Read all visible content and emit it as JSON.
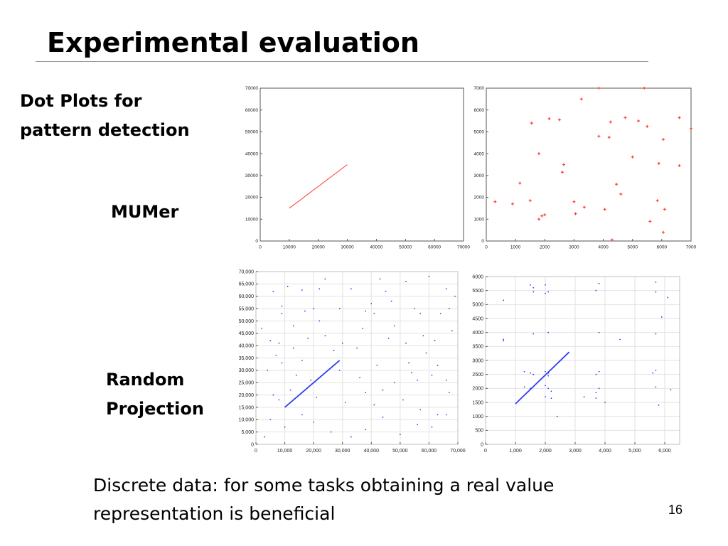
{
  "slide": {
    "title": "Experimental evaluation",
    "label_dotplots": [
      "Dot Plots for",
      "pattern detection"
    ],
    "label_mumer": "MUMer",
    "label_rp": [
      "Random",
      "Projection"
    ],
    "caption": [
      "Discrete data: for some tasks obtaining a real value",
      "representation is beneficial"
    ],
    "page_number": "16"
  },
  "chart_data": [
    {
      "id": "mumer-left",
      "type": "line",
      "color": "#ff3b30",
      "xlim": [
        0,
        70000
      ],
      "ylim": [
        0,
        70000
      ],
      "xticks": [
        0,
        10000,
        20000,
        30000,
        40000,
        50000,
        60000,
        70000
      ],
      "yticks": [
        0,
        10000,
        20000,
        30000,
        40000,
        50000,
        60000,
        70000
      ],
      "xticklabels": [
        "0",
        "10000",
        "20000",
        "30000",
        "40000",
        "50000",
        "60000",
        "70000"
      ],
      "yticklabels": [
        "0",
        "10000",
        "20000",
        "30000",
        "40000",
        "50000",
        "60000",
        "70000"
      ],
      "grid": false,
      "lines": [
        {
          "x": [
            10000,
            30000
          ],
          "y": [
            15000,
            35000
          ]
        }
      ],
      "points": []
    },
    {
      "id": "mumer-right",
      "type": "scatter",
      "color": "#ff3b30",
      "xlim": [
        0,
        7000
      ],
      "ylim": [
        0,
        7000
      ],
      "xticks": [
        0,
        1000,
        2000,
        3000,
        4000,
        5000,
        6000,
        7000
      ],
      "yticks": [
        0,
        1000,
        2000,
        3000,
        4000,
        5000,
        6000,
        7000
      ],
      "xticklabels": [
        "0",
        "1000",
        "2000",
        "3000",
        "4000",
        "5000",
        "6000",
        "7000"
      ],
      "yticklabels": [
        "0",
        "1000",
        "2000",
        "3000",
        "4000",
        "5000",
        "6000",
        "7000"
      ],
      "grid": false,
      "lines": [],
      "points": [
        [
          300,
          1800
        ],
        [
          900,
          1700
        ],
        [
          1150,
          2650
        ],
        [
          1500,
          1850
        ],
        [
          1550,
          5400
        ],
        [
          1800,
          1000
        ],
        [
          1800,
          4000
        ],
        [
          1900,
          1150
        ],
        [
          2000,
          1200
        ],
        [
          2150,
          5600
        ],
        [
          2500,
          5550
        ],
        [
          2600,
          3150
        ],
        [
          2650,
          3500
        ],
        [
          3000,
          1800
        ],
        [
          3050,
          1250
        ],
        [
          3250,
          6500
        ],
        [
          3350,
          1550
        ],
        [
          3850,
          7000
        ],
        [
          3850,
          4800
        ],
        [
          4050,
          1450
        ],
        [
          4200,
          4750
        ],
        [
          4250,
          5450
        ],
        [
          4300,
          50
        ],
        [
          4450,
          2600
        ],
        [
          4600,
          2150
        ],
        [
          4750,
          5650
        ],
        [
          5000,
          3850
        ],
        [
          5200,
          5500
        ],
        [
          5400,
          7000
        ],
        [
          5500,
          5250
        ],
        [
          5600,
          900
        ],
        [
          5850,
          1850
        ],
        [
          5900,
          3550
        ],
        [
          6050,
          400
        ],
        [
          6050,
          4650
        ],
        [
          6100,
          1450
        ],
        [
          6600,
          5650
        ],
        [
          6600,
          3450
        ],
        [
          7000,
          5150
        ]
      ]
    },
    {
      "id": "rp-left",
      "type": "scatter",
      "color": "#2e3cf5",
      "xlim": [
        0,
        70000
      ],
      "ylim": [
        0,
        70000
      ],
      "xticks": [
        0,
        10000,
        20000,
        30000,
        40000,
        50000,
        60000,
        70000
      ],
      "yticks": [
        0,
        5000,
        10000,
        15000,
        20000,
        25000,
        30000,
        35000,
        40000,
        45000,
        50000,
        55000,
        60000,
        65000,
        70000
      ],
      "xticklabels": [
        "0",
        "10,000",
        "20,000",
        "30,000",
        "40,000",
        "50,000",
        "60,000",
        "70,000"
      ],
      "yticklabels": [
        "0",
        "5,000",
        "10,000",
        "15,000",
        "20,000",
        "25,000",
        "30,000",
        "35,000",
        "40,000",
        "45,000",
        "50,000",
        "55,000",
        "60,000",
        "65,000",
        "70,000"
      ],
      "grid": true,
      "lines": [
        {
          "x": [
            10000,
            29000
          ],
          "y": [
            15000,
            34000
          ]
        }
      ],
      "points": [
        [
          6000,
          62000
        ],
        [
          16000,
          62500
        ],
        [
          22000,
          63000
        ],
        [
          33000,
          63000
        ],
        [
          45000,
          62000
        ],
        [
          52000,
          66000
        ],
        [
          66000,
          63000
        ],
        [
          9000,
          56000
        ],
        [
          9000,
          53000
        ],
        [
          20000,
          55000
        ],
        [
          17000,
          54000
        ],
        [
          29000,
          55000
        ],
        [
          38000,
          54000
        ],
        [
          41000,
          53000
        ],
        [
          55000,
          55000
        ],
        [
          57000,
          53000
        ],
        [
          64000,
          53000
        ],
        [
          67000,
          55000
        ],
        [
          5000,
          42000
        ],
        [
          8000,
          41000
        ],
        [
          13000,
          48000
        ],
        [
          18000,
          43000
        ],
        [
          24000,
          44000
        ],
        [
          30000,
          41000
        ],
        [
          37000,
          47000
        ],
        [
          46000,
          43000
        ],
        [
          52000,
          41000
        ],
        [
          58000,
          44000
        ],
        [
          62000,
          42000
        ],
        [
          68000,
          46000
        ],
        [
          4000,
          30000
        ],
        [
          9000,
          33000
        ],
        [
          14000,
          28000
        ],
        [
          16000,
          34000
        ],
        [
          29000,
          30000
        ],
        [
          36000,
          27000
        ],
        [
          42000,
          32000
        ],
        [
          48000,
          25000
        ],
        [
          54000,
          29000
        ],
        [
          56000,
          26000
        ],
        [
          61000,
          28000
        ],
        [
          66000,
          26000
        ],
        [
          6000,
          20000
        ],
        [
          8000,
          18000
        ],
        [
          12000,
          22000
        ],
        [
          21000,
          19000
        ],
        [
          31000,
          17000
        ],
        [
          38000,
          21000
        ],
        [
          44000,
          22000
        ],
        [
          51000,
          18000
        ],
        [
          57000,
          14000
        ],
        [
          63000,
          12000
        ],
        [
          67000,
          21000
        ],
        [
          5000,
          10000
        ],
        [
          10000,
          7000
        ],
        [
          16000,
          12000
        ],
        [
          20000,
          9000
        ],
        [
          26000,
          5000
        ],
        [
          33000,
          3000
        ],
        [
          38000,
          6000
        ],
        [
          44000,
          11000
        ],
        [
          50000,
          4000
        ],
        [
          56000,
          8000
        ],
        [
          61000,
          7000
        ],
        [
          66000,
          12000
        ],
        [
          2000,
          47000
        ],
        [
          24000,
          67000
        ],
        [
          43000,
          67000
        ],
        [
          60000,
          68000
        ],
        [
          69000,
          60000
        ],
        [
          3000,
          3000
        ],
        [
          11000,
          64000
        ],
        [
          47000,
          58000
        ],
        [
          35000,
          39000
        ],
        [
          27000,
          38000
        ],
        [
          22000,
          50000
        ],
        [
          13000,
          39000
        ],
        [
          40000,
          57000
        ],
        [
          59000,
          37000
        ],
        [
          48000,
          48000
        ],
        [
          53000,
          33000
        ],
        [
          19000,
          26000
        ],
        [
          7000,
          36000
        ],
        [
          41000,
          16000
        ],
        [
          63000,
          32000
        ]
      ]
    },
    {
      "id": "rp-right",
      "type": "scatter",
      "color": "#2e3cf5",
      "xlim": [
        0,
        6500
      ],
      "ylim": [
        0,
        6000
      ],
      "xticks": [
        0,
        1000,
        2000,
        3000,
        4000,
        5000,
        6000
      ],
      "yticks": [
        0,
        500,
        1000,
        1500,
        2000,
        2500,
        3000,
        3500,
        4000,
        4500,
        5000,
        5500,
        6000
      ],
      "xticklabels": [
        "0",
        "1,000",
        "2,000",
        "3,000",
        "4,000",
        "5,000",
        "6,000"
      ],
      "yticklabels": [
        "0",
        "500",
        "1000",
        "1500",
        "2000",
        "2500",
        "3000",
        "3500",
        "4000",
        "4500",
        "5000",
        "5500",
        "6000"
      ],
      "grid": true,
      "lines": [
        {
          "x": [
            1000,
            2800
          ],
          "y": [
            1450,
            3300
          ]
        }
      ],
      "points": [
        [
          600,
          5150
        ],
        [
          1500,
          5700
        ],
        [
          1600,
          5600
        ],
        [
          1600,
          5450
        ],
        [
          2000,
          5700
        ],
        [
          2100,
          5450
        ],
        [
          2000,
          5400
        ],
        [
          3800,
          5750
        ],
        [
          3700,
          5500
        ],
        [
          5700,
          5800
        ],
        [
          5700,
          5450
        ],
        [
          6100,
          5250
        ],
        [
          1600,
          3950
        ],
        [
          2100,
          4000
        ],
        [
          3800,
          4000
        ],
        [
          4500,
          3750
        ],
        [
          5700,
          3950
        ],
        [
          600,
          3750
        ],
        [
          1300,
          2600
        ],
        [
          1500,
          2550
        ],
        [
          1600,
          2500
        ],
        [
          2000,
          2600
        ],
        [
          2100,
          2550
        ],
        [
          2100,
          2450
        ],
        [
          3800,
          2600
        ],
        [
          3700,
          2500
        ],
        [
          5700,
          2650
        ],
        [
          5600,
          2550
        ],
        [
          1300,
          2050
        ],
        [
          1500,
          2000
        ],
        [
          2000,
          2100
        ],
        [
          2100,
          2000
        ],
        [
          2200,
          1900
        ],
        [
          3800,
          2000
        ],
        [
          3700,
          1850
        ],
        [
          5700,
          2050
        ],
        [
          6200,
          1950
        ],
        [
          2000,
          1700
        ],
        [
          2200,
          1650
        ],
        [
          3700,
          1650
        ],
        [
          4000,
          1500
        ],
        [
          5800,
          1400
        ],
        [
          2400,
          1000
        ],
        [
          600,
          3700
        ],
        [
          5900,
          4550
        ],
        [
          3300,
          1700
        ]
      ]
    }
  ]
}
